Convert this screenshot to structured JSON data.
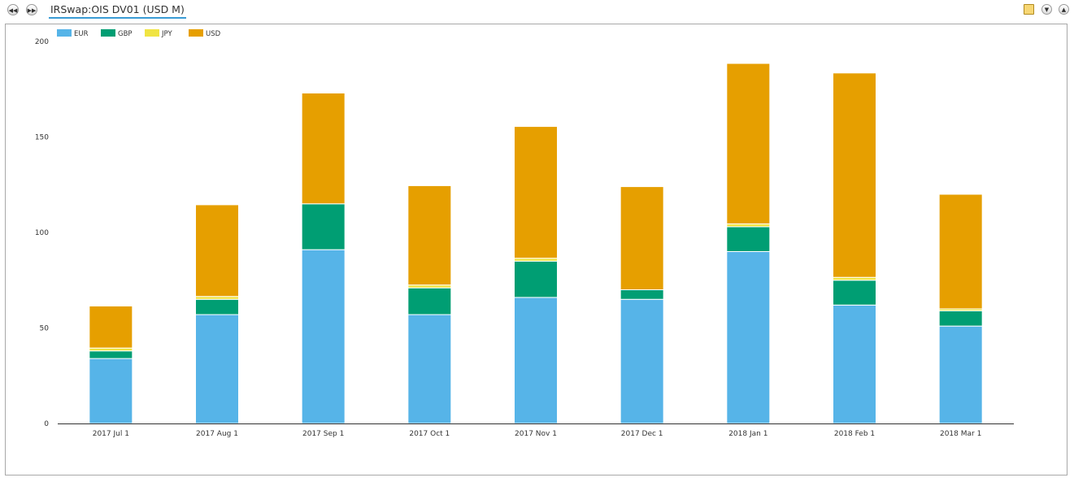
{
  "toolbar": {
    "prev_icon": "rewind-icon",
    "next_icon": "fast-forward-icon",
    "tab_title": "IRSwap:OIS DV01 (USD M)",
    "right_icons": [
      "document-icon",
      "expand-down-icon",
      "collapse-up-icon"
    ]
  },
  "colors": {
    "EUR": "#56b4e8",
    "GBP": "#009e73",
    "JPY": "#f0e442",
    "USD": "#e69f00"
  },
  "chart_data": {
    "type": "bar",
    "stacked": true,
    "categories": [
      "2017 Jul 1",
      "2017 Aug 1",
      "2017 Sep 1",
      "2017 Oct 1",
      "2017 Nov 1",
      "2017 Dec 1",
      "2018 Jan 1",
      "2018 Feb 1",
      "2018 Mar 1"
    ],
    "series": [
      {
        "name": "EUR",
        "values": [
          34,
          57,
          91,
          57,
          66,
          65,
          90,
          62,
          51
        ]
      },
      {
        "name": "GBP",
        "values": [
          4,
          8,
          24,
          14,
          19,
          5,
          13,
          13,
          8
        ]
      },
      {
        "name": "JPY",
        "values": [
          1.5,
          1.5,
          0,
          1.5,
          1.5,
          0,
          1.5,
          1.5,
          1
        ]
      },
      {
        "name": "USD",
        "values": [
          22,
          48,
          58,
          52,
          69,
          54,
          84,
          107,
          60
        ]
      }
    ],
    "yticks": [
      0,
      50,
      100,
      150,
      200
    ],
    "ylim": [
      0,
      200
    ],
    "legend": "top-left",
    "grid": false
  }
}
